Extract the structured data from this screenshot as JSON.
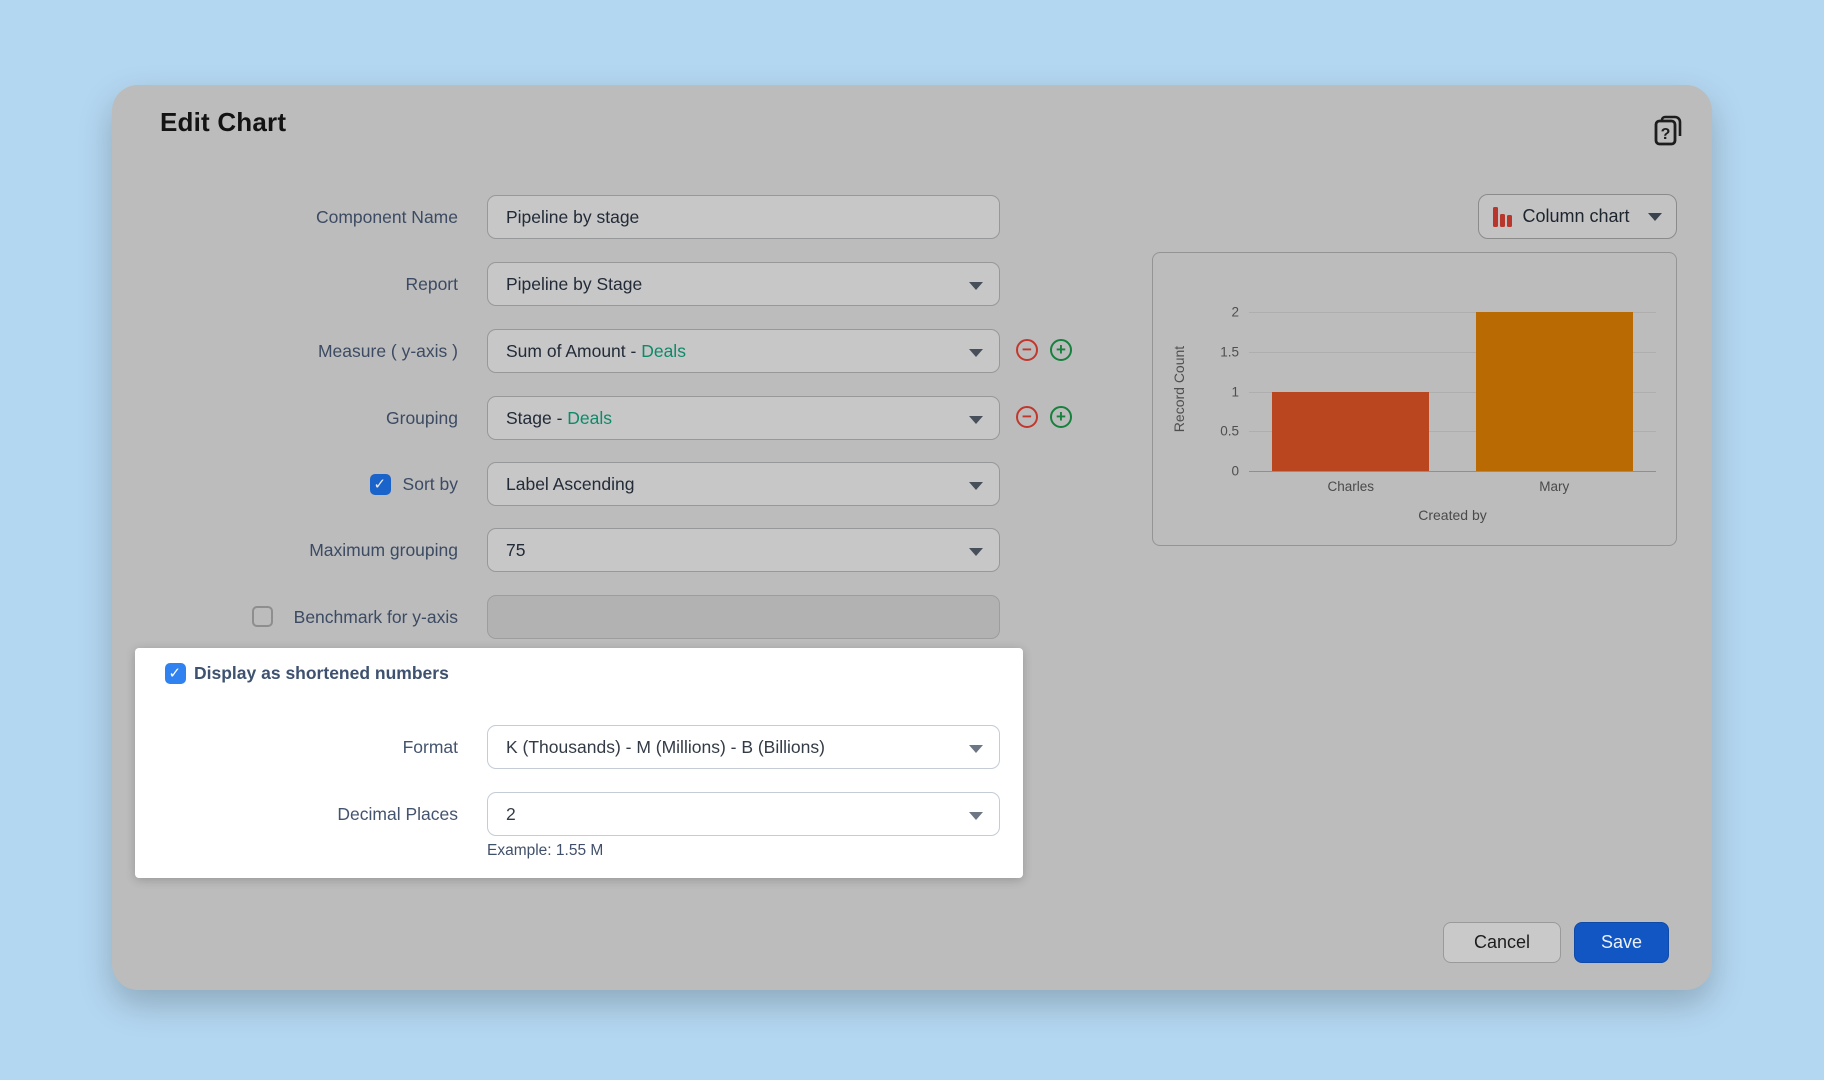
{
  "dialog": {
    "title": "Edit Chart"
  },
  "fields": {
    "component_name": {
      "label": "Component Name",
      "value": "Pipeline by stage"
    },
    "report": {
      "label": "Report",
      "value": "Pipeline by Stage"
    },
    "measure": {
      "label": "Measure ( y-axis )",
      "value_prefix": "Sum of Amount - ",
      "value_accent": "Deals"
    },
    "grouping": {
      "label": "Grouping",
      "value_prefix": "Stage - ",
      "value_accent": "Deals"
    },
    "sort_by": {
      "label": "Sort by",
      "value": "Label Ascending",
      "checked": true
    },
    "maximum_grouping": {
      "label": "Maximum grouping",
      "value": "75"
    },
    "benchmark": {
      "label": "Benchmark for y-axis",
      "value": "",
      "checked": false
    }
  },
  "shortened_section": {
    "checkbox_label": "Display as shortened numbers",
    "checked": true,
    "format": {
      "label": "Format",
      "value": "K (Thousands) - M (Millions) - B (Billions)"
    },
    "decimal_places": {
      "label": "Decimal Places",
      "value": "2"
    },
    "example": "Example: 1.55 M"
  },
  "chart_selector": {
    "label": "Column chart"
  },
  "chart_data": {
    "type": "bar",
    "categories": [
      "Charles",
      "Mary"
    ],
    "values": [
      1,
      2
    ],
    "colors": [
      "#b9461e",
      "#ba6a02"
    ],
    "title": "",
    "xlabel": "Created by",
    "ylabel": "Record Count",
    "yticks": [
      0,
      0.5,
      1,
      1.5,
      2
    ],
    "ylim": [
      0,
      2
    ],
    "grid": true,
    "legend": false
  },
  "footer": {
    "cancel_label": "Cancel",
    "save_label": "Save"
  },
  "colors": {
    "page_background": "#b4d7f1",
    "dialog_background": "#bcbcbc",
    "accent_green": "#0e8a69",
    "checkbox_blue_dim": "#1a63cb",
    "checkbox_blue_bright": "#2f82ef",
    "save_blue": "#1256c4",
    "remove_red": "#c2372c",
    "add_green": "#15813c",
    "bar_charles": "#b9461e",
    "bar_mary": "#ba6a02",
    "chart_icon_red": "#b8362c"
  }
}
